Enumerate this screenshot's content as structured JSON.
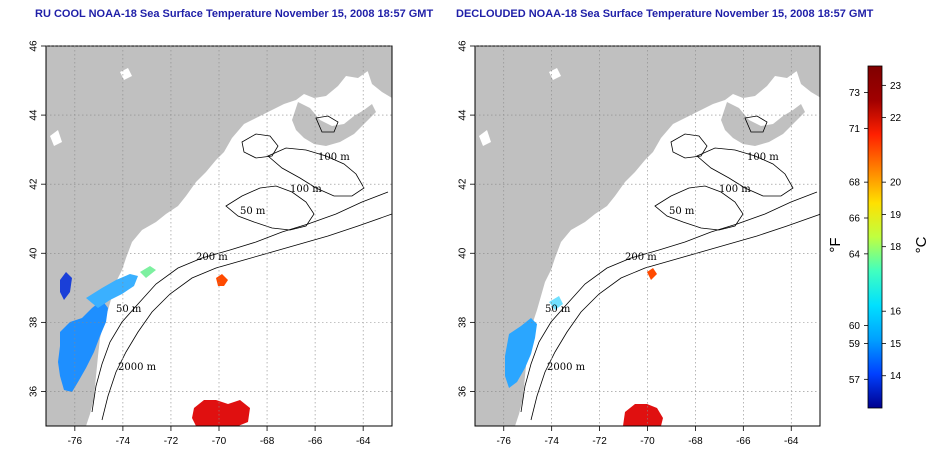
{
  "panels": [
    {
      "id": "left",
      "title": "RU COOL NOAA-18 Sea Surface Temperature November 15, 2008 18:57 GMT"
    },
    {
      "id": "right",
      "title": "DECLOUDED NOAA-18 Sea Surface Temperature November 15, 2008 18:57 GMT"
    }
  ],
  "axes": {
    "lon_range": [
      -77.2,
      -62.8
    ],
    "lat_range": [
      35.0,
      46.0
    ],
    "lon_ticks": [
      "-76",
      "-74",
      "-72",
      "-70",
      "-68",
      "-66",
      "-64"
    ],
    "lat_ticks": [
      "36",
      "38",
      "40",
      "42",
      "44",
      "46"
    ],
    "grid": "dotted"
  },
  "contour_labels": [
    "100 m",
    "100 m",
    "50 m",
    "200 m",
    "50 m",
    "2000 m"
  ],
  "colorbar": {
    "fahrenheit_ticks": [
      "73",
      "71",
      "68",
      "66",
      "64",
      "60",
      "59",
      "57"
    ],
    "celsius_ticks": [
      "23",
      "22",
      "20",
      "19",
      "18",
      "16",
      "15",
      "14"
    ],
    "fahrenheit_unit": "°F",
    "celsius_unit": "°C",
    "celsius_range": [
      13.0,
      23.6
    ],
    "colors": [
      "#00008f",
      "#0040ff",
      "#00a0ff",
      "#00e0ff",
      "#40ffc0",
      "#c0ff40",
      "#ffe000",
      "#ff8000",
      "#ff2000",
      "#a00000",
      "#800000"
    ]
  },
  "colors": {
    "land": "#c0c0c0",
    "title": "#1f1fa8",
    "contour": "#000000"
  }
}
